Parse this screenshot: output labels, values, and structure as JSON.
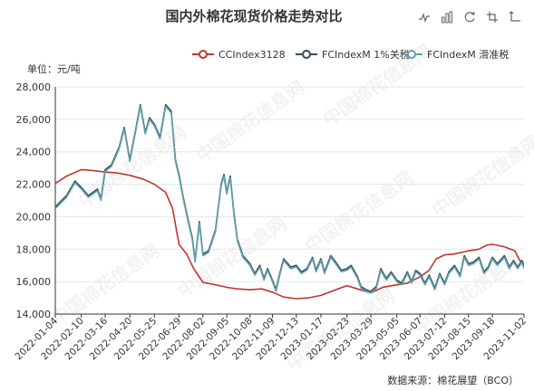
{
  "chart_data": {
    "type": "line",
    "title": "国内外棉花现货价格走势对比",
    "unit_label": "单位：元/吨",
    "source": "数据来源：棉花展望（BCO）",
    "watermark": "中国棉花信息网",
    "ylim": [
      14000,
      28000
    ],
    "yticks": [
      14000,
      16000,
      18000,
      20000,
      22000,
      24000,
      26000,
      28000
    ],
    "xlim": [
      "2022-01-04",
      "2023-11-02"
    ],
    "xticks": [
      "2022-01-04",
      "2022-02-10",
      "2022-03-16",
      "2022-04-20",
      "2022-05-25",
      "2022-06-29",
      "2022-08-02",
      "2022-09-05",
      "2022-10-08",
      "2022-11-09",
      "2022-12-13",
      "2023-01-17",
      "2023-02-23",
      "2023-03-29",
      "2023-05-05",
      "2023-06-07",
      "2023-07-12",
      "2023-08-15",
      "2023-09-18",
      "2023-11-02"
    ],
    "legend_position": "top-right",
    "grid": true,
    "series": [
      {
        "name": "CCIndex3128",
        "color": "#c23531",
        "points": [
          [
            "2022-01-04",
            22050
          ],
          [
            "2022-01-20",
            22500
          ],
          [
            "2022-02-10",
            22900
          ],
          [
            "2022-02-25",
            22850
          ],
          [
            "2022-03-16",
            22750
          ],
          [
            "2022-04-01",
            22700
          ],
          [
            "2022-04-20",
            22550
          ],
          [
            "2022-05-10",
            22300
          ],
          [
            "2022-05-25",
            22000
          ],
          [
            "2022-06-10",
            21500
          ],
          [
            "2022-06-20",
            20500
          ],
          [
            "2022-06-29",
            18300
          ],
          [
            "2022-07-10",
            17700
          ],
          [
            "2022-07-20",
            16800
          ],
          [
            "2022-08-02",
            15950
          ],
          [
            "2022-08-20",
            15800
          ],
          [
            "2022-09-05",
            15650
          ],
          [
            "2022-09-20",
            15550
          ],
          [
            "2022-10-08",
            15500
          ],
          [
            "2022-10-25",
            15550
          ],
          [
            "2022-11-09",
            15350
          ],
          [
            "2022-11-25",
            15050
          ],
          [
            "2022-12-13",
            14950
          ],
          [
            "2022-12-30",
            15000
          ],
          [
            "2023-01-17",
            15150
          ],
          [
            "2023-02-01",
            15400
          ],
          [
            "2023-02-23",
            15750
          ],
          [
            "2023-03-10",
            15550
          ],
          [
            "2023-03-29",
            15300
          ],
          [
            "2023-04-15",
            15650
          ],
          [
            "2023-05-05",
            15800
          ],
          [
            "2023-05-20",
            15900
          ],
          [
            "2023-06-07",
            16300
          ],
          [
            "2023-06-20",
            16700
          ],
          [
            "2023-06-30",
            17400
          ],
          [
            "2023-07-12",
            17650
          ],
          [
            "2023-07-25",
            17700
          ],
          [
            "2023-08-15",
            17900
          ],
          [
            "2023-08-30",
            18000
          ],
          [
            "2023-09-10",
            18250
          ],
          [
            "2023-09-18",
            18300
          ],
          [
            "2023-10-05",
            18150
          ],
          [
            "2023-10-20",
            17900
          ],
          [
            "2023-10-27",
            17300
          ],
          [
            "2023-11-02",
            17150
          ]
        ]
      },
      {
        "name": "FCIndexM 1%关税",
        "color": "#334b5c",
        "points": [
          [
            "2022-01-04",
            20600
          ],
          [
            "2022-01-20",
            21300
          ],
          [
            "2022-02-01",
            22200
          ],
          [
            "2022-02-10",
            21800
          ],
          [
            "2022-02-20",
            21300
          ],
          [
            "2022-03-05",
            21700
          ],
          [
            "2022-03-10",
            21100
          ],
          [
            "2022-03-16",
            22900
          ],
          [
            "2022-03-25",
            23200
          ],
          [
            "2022-04-05",
            24300
          ],
          [
            "2022-04-12",
            25500
          ],
          [
            "2022-04-20",
            23500
          ],
          [
            "2022-04-28",
            25300
          ],
          [
            "2022-05-05",
            26900
          ],
          [
            "2022-05-12",
            25200
          ],
          [
            "2022-05-18",
            26100
          ],
          [
            "2022-05-25",
            25700
          ],
          [
            "2022-06-02",
            24900
          ],
          [
            "2022-06-10",
            26900
          ],
          [
            "2022-06-18",
            26500
          ],
          [
            "2022-06-24",
            23500
          ],
          [
            "2022-06-29",
            22600
          ],
          [
            "2022-07-05",
            21200
          ],
          [
            "2022-07-12",
            19800
          ],
          [
            "2022-07-18",
            18700
          ],
          [
            "2022-07-22",
            17300
          ],
          [
            "2022-07-28",
            19700
          ],
          [
            "2022-08-02",
            17700
          ],
          [
            "2022-08-10",
            17900
          ],
          [
            "2022-08-20",
            19200
          ],
          [
            "2022-08-28",
            22000
          ],
          [
            "2022-09-01",
            22600
          ],
          [
            "2022-09-05",
            21500
          ],
          [
            "2022-09-10",
            22500
          ],
          [
            "2022-09-15",
            20300
          ],
          [
            "2022-09-20",
            18600
          ],
          [
            "2022-09-28",
            17600
          ],
          [
            "2022-10-08",
            17100
          ],
          [
            "2022-10-15",
            16500
          ],
          [
            "2022-10-22",
            17000
          ],
          [
            "2022-10-28",
            16200
          ],
          [
            "2022-11-02",
            16800
          ],
          [
            "2022-11-09",
            16100
          ],
          [
            "2022-11-14",
            15500
          ],
          [
            "2022-11-20",
            16600
          ],
          [
            "2022-11-25",
            17400
          ],
          [
            "2022-12-05",
            16900
          ],
          [
            "2022-12-13",
            17000
          ],
          [
            "2022-12-20",
            16600
          ],
          [
            "2022-12-28",
            16800
          ],
          [
            "2023-01-05",
            17500
          ],
          [
            "2023-01-10",
            16700
          ],
          [
            "2023-01-17",
            17400
          ],
          [
            "2023-01-22",
            16600
          ],
          [
            "2023-01-31",
            17600
          ],
          [
            "2023-02-07",
            17200
          ],
          [
            "2023-02-15",
            16700
          ],
          [
            "2023-02-23",
            16800
          ],
          [
            "2023-03-01",
            17000
          ],
          [
            "2023-03-10",
            16300
          ],
          [
            "2023-03-15",
            15700
          ],
          [
            "2023-03-22",
            15500
          ],
          [
            "2023-03-29",
            15400
          ],
          [
            "2023-04-06",
            15700
          ],
          [
            "2023-04-12",
            16800
          ],
          [
            "2023-04-20",
            16200
          ],
          [
            "2023-04-27",
            16600
          ],
          [
            "2023-05-05",
            16100
          ],
          [
            "2023-05-12",
            15900
          ],
          [
            "2023-05-20",
            16600
          ],
          [
            "2023-05-26",
            16000
          ],
          [
            "2023-06-01",
            16700
          ],
          [
            "2023-06-07",
            16500
          ],
          [
            "2023-06-14",
            15900
          ],
          [
            "2023-06-20",
            16400
          ],
          [
            "2023-06-28",
            15600
          ],
          [
            "2023-07-05",
            16500
          ],
          [
            "2023-07-12",
            15900
          ],
          [
            "2023-07-18",
            16600
          ],
          [
            "2023-07-26",
            17000
          ],
          [
            "2023-08-03",
            16400
          ],
          [
            "2023-08-09",
            17600
          ],
          [
            "2023-08-15",
            17100
          ],
          [
            "2023-08-22",
            17200
          ],
          [
            "2023-08-30",
            17500
          ],
          [
            "2023-09-06",
            16600
          ],
          [
            "2023-09-12",
            16900
          ],
          [
            "2023-09-18",
            17500
          ],
          [
            "2023-09-25",
            17100
          ],
          [
            "2023-10-05",
            17600
          ],
          [
            "2023-10-12",
            16900
          ],
          [
            "2023-10-18",
            17300
          ],
          [
            "2023-10-24",
            16900
          ],
          [
            "2023-10-30",
            17300
          ],
          [
            "2023-11-02",
            16900
          ]
        ]
      },
      {
        "name": "FCIndexM 滑准税",
        "color": "#61a0a8",
        "points": [
          [
            "2022-01-04",
            20500
          ],
          [
            "2022-01-20",
            21200
          ],
          [
            "2022-02-01",
            22100
          ],
          [
            "2022-02-10",
            21700
          ],
          [
            "2022-02-20",
            21200
          ],
          [
            "2022-03-05",
            21600
          ],
          [
            "2022-03-10",
            21000
          ],
          [
            "2022-03-16",
            22800
          ],
          [
            "2022-03-25",
            23100
          ],
          [
            "2022-04-05",
            24200
          ],
          [
            "2022-04-12",
            25400
          ],
          [
            "2022-04-20",
            23400
          ],
          [
            "2022-04-28",
            25200
          ],
          [
            "2022-05-05",
            26800
          ],
          [
            "2022-05-12",
            25100
          ],
          [
            "2022-05-18",
            26000
          ],
          [
            "2022-05-25",
            25600
          ],
          [
            "2022-06-02",
            24800
          ],
          [
            "2022-06-10",
            26800
          ],
          [
            "2022-06-18",
            26400
          ],
          [
            "2022-06-24",
            23400
          ],
          [
            "2022-06-29",
            22500
          ],
          [
            "2022-07-05",
            21100
          ],
          [
            "2022-07-12",
            19700
          ],
          [
            "2022-07-18",
            18600
          ],
          [
            "2022-07-22",
            17200
          ],
          [
            "2022-07-28",
            19600
          ],
          [
            "2022-08-02",
            17600
          ],
          [
            "2022-08-10",
            17800
          ],
          [
            "2022-08-20",
            19100
          ],
          [
            "2022-08-28",
            21900
          ],
          [
            "2022-09-01",
            22500
          ],
          [
            "2022-09-05",
            21400
          ],
          [
            "2022-09-10",
            22400
          ],
          [
            "2022-09-15",
            20200
          ],
          [
            "2022-09-20",
            18500
          ],
          [
            "2022-09-28",
            17500
          ],
          [
            "2022-10-08",
            17000
          ],
          [
            "2022-10-15",
            16400
          ],
          [
            "2022-10-22",
            16900
          ],
          [
            "2022-10-28",
            16100
          ],
          [
            "2022-11-02",
            16700
          ],
          [
            "2022-11-09",
            16000
          ],
          [
            "2022-11-14",
            15400
          ],
          [
            "2022-11-20",
            16500
          ],
          [
            "2022-11-25",
            17300
          ],
          [
            "2022-12-05",
            16800
          ],
          [
            "2022-12-13",
            16900
          ],
          [
            "2022-12-20",
            16500
          ],
          [
            "2022-12-28",
            16700
          ],
          [
            "2023-01-05",
            17400
          ],
          [
            "2023-01-10",
            16600
          ],
          [
            "2023-01-17",
            17300
          ],
          [
            "2023-01-22",
            16500
          ],
          [
            "2023-01-31",
            17500
          ],
          [
            "2023-02-07",
            17100
          ],
          [
            "2023-02-15",
            16600
          ],
          [
            "2023-02-23",
            16700
          ],
          [
            "2023-03-01",
            16900
          ],
          [
            "2023-03-10",
            16200
          ],
          [
            "2023-03-15",
            15600
          ],
          [
            "2023-03-22",
            15400
          ],
          [
            "2023-03-29",
            15300
          ],
          [
            "2023-04-06",
            15600
          ],
          [
            "2023-04-12",
            16700
          ],
          [
            "2023-04-20",
            16100
          ],
          [
            "2023-04-27",
            16500
          ],
          [
            "2023-05-05",
            16000
          ],
          [
            "2023-05-12",
            15800
          ],
          [
            "2023-05-20",
            16500
          ],
          [
            "2023-05-26",
            15900
          ],
          [
            "2023-06-01",
            16600
          ],
          [
            "2023-06-07",
            16400
          ],
          [
            "2023-06-14",
            15800
          ],
          [
            "2023-06-20",
            16300
          ],
          [
            "2023-06-28",
            15500
          ],
          [
            "2023-07-05",
            16400
          ],
          [
            "2023-07-12",
            15800
          ],
          [
            "2023-07-18",
            16500
          ],
          [
            "2023-07-26",
            16900
          ],
          [
            "2023-08-03",
            16300
          ],
          [
            "2023-08-09",
            17500
          ],
          [
            "2023-08-15",
            17000
          ],
          [
            "2023-08-22",
            17100
          ],
          [
            "2023-08-30",
            17400
          ],
          [
            "2023-09-06",
            16500
          ],
          [
            "2023-09-12",
            16800
          ],
          [
            "2023-09-18",
            17400
          ],
          [
            "2023-09-25",
            17000
          ],
          [
            "2023-10-05",
            17500
          ],
          [
            "2023-10-12",
            16800
          ],
          [
            "2023-10-18",
            17200
          ],
          [
            "2023-10-24",
            16800
          ],
          [
            "2023-10-30",
            17200
          ],
          [
            "2023-11-02",
            16800
          ]
        ]
      }
    ]
  },
  "toolbox": {
    "items": [
      {
        "name": "line-chart-icon"
      },
      {
        "name": "bar-chart-icon"
      },
      {
        "name": "restore-icon"
      },
      {
        "name": "data-zoom-icon"
      },
      {
        "name": "zoom-reset-icon"
      }
    ]
  }
}
